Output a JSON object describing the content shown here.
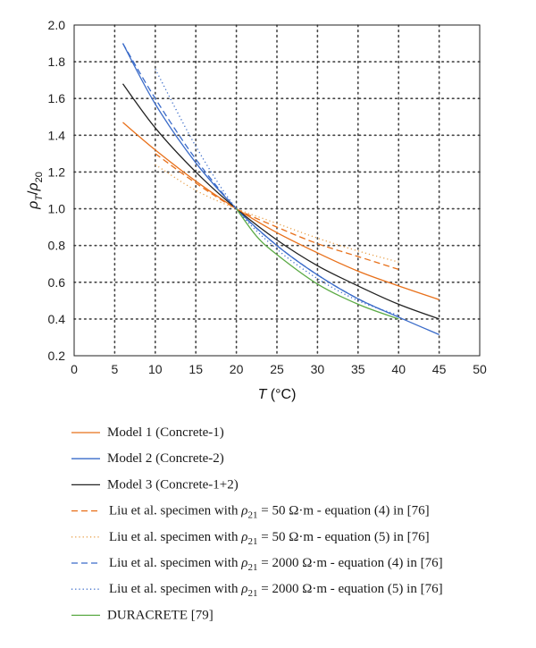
{
  "chart_data": {
    "type": "line",
    "xlabel": "T (°C)",
    "ylabel": "ρT/ρ20",
    "xlim": [
      0,
      50
    ],
    "ylim": [
      0.2,
      2.0
    ],
    "x_ticks": [
      "0",
      "5",
      "10",
      "15",
      "20",
      "25",
      "30",
      "35",
      "40",
      "45",
      "50"
    ],
    "y_ticks": [
      "0.2",
      "0.4",
      "0.6",
      "0.8",
      "1.0",
      "1.2",
      "1.4",
      "1.6",
      "1.8",
      "2.0"
    ],
    "grid": true,
    "legend_position": "bottom",
    "series": [
      {
        "name": "Model 1 (Concrete-1)",
        "color": "#E8701A",
        "style": "solid",
        "x": [
          6,
          10,
          15,
          20,
          25,
          30,
          35,
          40,
          45
        ],
        "y": [
          1.47,
          1.32,
          1.15,
          1.0,
          0.87,
          0.76,
          0.66,
          0.58,
          0.505
        ]
      },
      {
        "name": "Model 2 (Concrete-2)",
        "color": "#3A6BC9",
        "style": "solid",
        "x": [
          6,
          10,
          15,
          20,
          25,
          30,
          35,
          40,
          45
        ],
        "y": [
          1.9,
          1.57,
          1.25,
          1.0,
          0.8,
          0.64,
          0.51,
          0.41,
          0.315
        ]
      },
      {
        "name": "Model 3 (Concrete-1+2)",
        "color": "#222222",
        "style": "solid",
        "x": [
          6,
          10,
          15,
          20,
          25,
          30,
          35,
          40,
          45
        ],
        "y": [
          1.68,
          1.44,
          1.2,
          1.0,
          0.83,
          0.69,
          0.58,
          0.48,
          0.4
        ]
      },
      {
        "name": "Liu et al. specimen with ρ21 = 50 Ω·m - equation (4) in [76]",
        "color": "#E8701A",
        "style": "dashed",
        "x": [
          10,
          15,
          20,
          25,
          30,
          35,
          40
        ],
        "y": [
          1.3,
          1.14,
          1.0,
          0.9,
          0.81,
          0.74,
          0.67
        ]
      },
      {
        "name": "Liu et al. specimen with ρ21 = 50 Ω·m - equation (5) in [76]",
        "color": "#E8A04A",
        "style": "dotted",
        "x": [
          10,
          15,
          20,
          25,
          30,
          35,
          40
        ],
        "y": [
          1.24,
          1.1,
          1.0,
          0.92,
          0.84,
          0.77,
          0.71
        ]
      },
      {
        "name": "Liu et al. specimen with ρ21 = 2000 Ω·m - equation (4) in [76]",
        "color": "#3A6BC9",
        "style": "dashed",
        "x": [
          6,
          10,
          15,
          20,
          25,
          30,
          35,
          40
        ],
        "y": [
          1.9,
          1.6,
          1.27,
          1.0,
          0.8,
          0.64,
          0.51,
          0.41
        ]
      },
      {
        "name": "Liu et al. specimen with ρ21 = 2000 Ω·m - equation (5) in [76]",
        "color": "#3A6BC9",
        "style": "dotted",
        "x": [
          10,
          15,
          20,
          25,
          30,
          35,
          40
        ],
        "y": [
          1.76,
          1.34,
          1.0,
          0.78,
          0.62,
          0.5,
          0.42
        ]
      },
      {
        "name": "DURACRETE [79]",
        "color": "#5BAA45",
        "style": "solid",
        "x": [
          20,
          22.5,
          25,
          30,
          35,
          40
        ],
        "y": [
          1.0,
          0.85,
          0.75,
          0.59,
          0.48,
          0.4
        ]
      }
    ]
  },
  "legend": [
    {
      "kind": "plain",
      "text": "Model 1 (Concrete-1)"
    },
    {
      "kind": "plain",
      "text": "Model 2 (Concrete-2)"
    },
    {
      "kind": "plain",
      "text": "Model 3 (Concrete-1+2)"
    },
    {
      "kind": "rho",
      "pre": "Liu et al. specimen with ",
      "sym": "ρ",
      "sub": "21",
      "post": " = 50 Ω·m - equation (4) in [76]"
    },
    {
      "kind": "rho",
      "pre": "Liu et al. specimen with ",
      "sym": "ρ",
      "sub": "21",
      "post": " = 50 Ω·m - equation (5) in [76]"
    },
    {
      "kind": "rho",
      "pre": "Liu et al. specimen with ",
      "sym": "ρ",
      "sub": "21",
      "post": " = 2000 Ω·m - equation (4) in [76]"
    },
    {
      "kind": "rho",
      "pre": "Liu et al. specimen with ",
      "sym": "ρ",
      "sub": "21",
      "post": " = 2000 Ω·m - equation (5) in [76]"
    },
    {
      "kind": "plain",
      "text": "DURACRETE [79]"
    }
  ]
}
